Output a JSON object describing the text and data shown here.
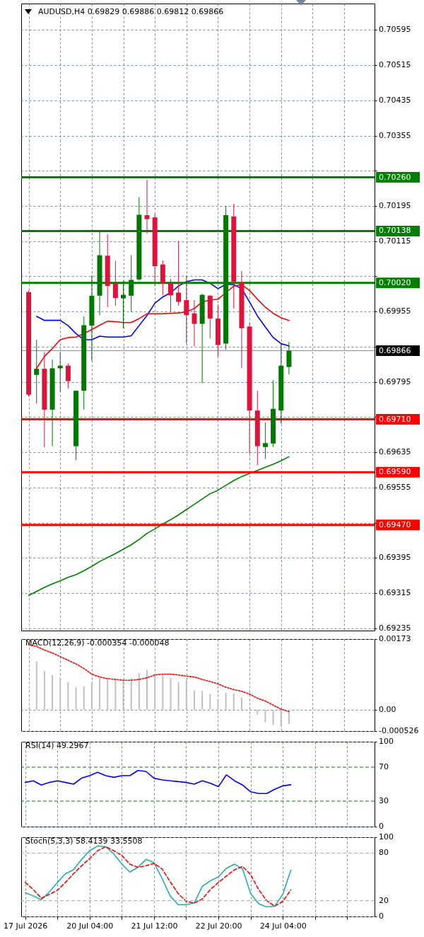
{
  "chart_data": [
    {
      "type": "candlestick",
      "title": "AUDUSD,H4 0.69829 0.69886 0.69812 0.69866",
      "categories": [
        null,
        null,
        null,
        null,
        null,
        null,
        null,
        null,
        null,
        null,
        null,
        null,
        null,
        null,
        null,
        null,
        null,
        null,
        null,
        null,
        null,
        null,
        null,
        null,
        null,
        null,
        null,
        null,
        null,
        null,
        null,
        null,
        null,
        null
      ],
      "ohlc": [
        [
          0.69999,
          0.70003,
          0.69762,
          0.69766
        ],
        [
          0.69811,
          0.69891,
          0.69746,
          0.69825
        ],
        [
          0.69825,
          0.69863,
          0.69646,
          0.69732
        ],
        [
          0.69732,
          0.69846,
          0.69649,
          0.69826
        ],
        [
          0.69826,
          0.69863,
          0.69772,
          0.69832
        ],
        [
          0.69832,
          0.69837,
          0.6978,
          0.69797
        ],
        [
          0.69649,
          0.69776,
          0.69617,
          0.69775
        ],
        [
          0.69775,
          0.69944,
          0.69732,
          0.69924
        ],
        [
          0.69923,
          0.70037,
          0.69843,
          0.69991
        ],
        [
          0.69991,
          0.70136,
          0.69947,
          0.70083
        ],
        [
          0.70082,
          0.70131,
          0.69965,
          0.70013
        ],
        [
          0.70019,
          0.7007,
          0.69968,
          0.69986
        ],
        [
          0.69985,
          0.70025,
          0.69917,
          0.69993
        ],
        [
          0.69991,
          0.70083,
          0.69954,
          0.70027
        ],
        [
          0.70028,
          0.70215,
          0.70025,
          0.70175
        ],
        [
          0.70174,
          0.70255,
          0.70132,
          0.70165
        ],
        [
          0.70169,
          0.70177,
          0.70013,
          0.70058
        ],
        [
          0.70062,
          0.70071,
          0.69992,
          0.70019
        ],
        [
          0.7002,
          0.70029,
          0.69953,
          0.69992
        ],
        [
          0.69998,
          0.70115,
          0.69968,
          0.69977
        ],
        [
          0.69981,
          0.70037,
          0.69882,
          0.69947
        ],
        [
          0.69951,
          0.69981,
          0.69876,
          0.69927
        ],
        [
          0.69927,
          0.69995,
          0.69792,
          0.69993
        ],
        [
          0.69991,
          0.69993,
          0.69894,
          0.69939
        ],
        [
          0.69939,
          0.69971,
          0.69853,
          0.69879
        ],
        [
          0.69882,
          0.70195,
          0.69868,
          0.70174
        ],
        [
          0.70171,
          0.702,
          0.69962,
          0.70023
        ],
        [
          0.70022,
          0.70047,
          0.69826,
          0.69917
        ],
        [
          0.69921,
          0.69929,
          0.69632,
          0.6973
        ],
        [
          0.6973,
          0.69775,
          0.69606,
          0.69649
        ],
        [
          0.69647,
          0.69703,
          0.6962,
          0.69656
        ],
        [
          0.69655,
          0.69799,
          0.69647,
          0.69734
        ],
        [
          0.6973,
          0.69882,
          0.697,
          0.69832
        ],
        [
          0.69829,
          0.69886,
          0.69812,
          0.69866
        ]
      ],
      "colors": [
        "#dc143c",
        "#007800",
        "#dc143c",
        "#007800",
        "#007800",
        "#dc143c",
        "#007800",
        "#007800",
        "#007800",
        "#007800",
        "#dc143c",
        "#dc143c",
        "#007800",
        "#007800",
        "#007800",
        "#dc143c",
        "#dc143c",
        "#dc143c",
        "#dc143c",
        "#dc143c",
        "#dc143c",
        "#dc143c",
        "#007800",
        "#dc143c",
        "#dc143c",
        "#007800",
        "#dc143c",
        "#dc143c",
        "#dc143c",
        "#dc143c",
        "#007800",
        "#007800",
        "#007800",
        "#007800"
      ],
      "series": [
        {
          "type": "line",
          "color": "#0000ff",
          "values": [
            null,
            0.69944,
            0.69935,
            0.69935,
            0.69935,
            0.69923,
            0.69905,
            0.69891,
            0.69891,
            0.69899,
            0.69897,
            0.69897,
            0.69897,
            0.699,
            0.69923,
            0.69946,
            0.69974,
            0.69988,
            0.69998,
            0.70013,
            0.70023,
            0.70027,
            0.70027,
            0.70019,
            0.70007,
            0.70017,
            0.70016,
            0.70007,
            0.69977,
            0.69945,
            0.6992,
            0.69896,
            0.69882,
            0.69877
          ]
        },
        {
          "type": "line",
          "color": "#ff0000",
          "values": [
            null,
            0.69826,
            0.69853,
            0.69871,
            0.69891,
            0.69896,
            0.69897,
            0.69905,
            0.69914,
            0.69924,
            0.69933,
            0.69932,
            0.6993,
            0.6993,
            0.69939,
            0.6995,
            0.6995,
            0.6995,
            0.69951,
            0.69952,
            0.69954,
            0.69962,
            0.69977,
            0.69981,
            0.69983,
            0.69998,
            0.70013,
            0.70016,
            0.70003,
            0.69983,
            0.69965,
            0.69951,
            0.69941,
            0.69935
          ]
        },
        {
          "type": "line",
          "color": "#008000",
          "values": [
            0.6931,
            0.69319,
            0.69328,
            0.69336,
            0.69343,
            0.69351,
            0.69357,
            0.69366,
            0.69376,
            0.69387,
            0.69396,
            0.69405,
            0.69415,
            0.69425,
            0.69437,
            0.69451,
            0.69461,
            0.69472,
            0.69482,
            0.69493,
            0.69505,
            0.69517,
            0.69529,
            0.69541,
            0.69549,
            0.6956,
            0.69571,
            0.6958,
            0.69587,
            0.69594,
            0.69601,
            0.69608,
            0.69616,
            0.69625
          ]
        }
      ],
      "ylim": [
        0.6923,
        0.70655
      ],
      "yticks": [
        0.70595,
        0.70515,
        0.70435,
        0.70355,
        {
          "value": 0.70275,
          "label": null
        },
        0.70195,
        0.70115,
        {
          "value": 0.70035,
          "label": null
        },
        0.69955,
        {
          "value": 0.69875,
          "label": null
        },
        0.69795,
        {
          "value": 0.69715,
          "label": null
        },
        0.69635,
        0.69555,
        {
          "value": 0.69475,
          "label": null
        },
        0.69395,
        0.69315,
        0.69235
      ],
      "ref_lines": [
        {
          "axis": "y",
          "value": 0.7026,
          "label": "0.70260",
          "color": "#008000"
        },
        {
          "axis": "y",
          "value": 0.70138,
          "label": "0.70138",
          "color": "#008000"
        },
        {
          "axis": "y",
          "value": 0.7002,
          "label": "0.70020",
          "color": "#008000"
        },
        {
          "axis": "y",
          "value": 0.69866,
          "label": "0.69866",
          "color": "#000000",
          "line_style": "solid"
        },
        {
          "axis": "y",
          "value": 0.6971,
          "label": "0.69710",
          "color": "#ff0000"
        },
        {
          "axis": "y",
          "value": 0.6959,
          "label": "0.69590",
          "color": "#ff0000"
        },
        {
          "axis": "y",
          "value": 0.6947,
          "label": "0.69470",
          "color": "#ff0000"
        }
      ],
      "grid": true,
      "tick_labels": "y"
    },
    {
      "type": "bar",
      "title": "MACD(12,26,9) -0.000354 -0.000048",
      "categories": [
        null,
        null,
        null,
        null,
        null,
        null,
        null,
        null,
        null,
        null,
        null,
        null,
        null,
        null,
        null,
        null,
        null,
        null,
        null,
        null,
        null,
        null,
        null,
        null,
        null,
        null,
        null,
        null,
        null,
        null,
        null,
        null,
        null,
        null
      ],
      "series": [
        {
          "type": "bar",
          "color": "#c0c0c0",
          "values": [
            null,
            0.00118,
            0.00095,
            0.00085,
            0.00078,
            0.00068,
            0.00055,
            0.00057,
            0.00066,
            0.00077,
            0.00077,
            0.00076,
            0.00072,
            0.00077,
            0.0009,
            0.00097,
            0.00088,
            0.00085,
            0.00078,
            0.00068,
            0.00072,
            0.00047,
            0.00046,
            0.00038,
            0.00026,
            0.00041,
            0.0004,
            0.0003,
            null,
            -0.00012,
            -0.00031,
            -0.00038,
            -0.00042,
            -0.000354
          ]
        },
        {
          "type": "line",
          "color": "#ff0000",
          "line_style": "dotted",
          "values": [
            0.00159,
            0.00155,
            0.00146,
            0.00139,
            0.0013,
            0.00121,
            0.00112,
            0.00101,
            0.00087,
            0.0008,
            0.00076,
            0.00074,
            0.00072,
            0.00072,
            0.00074,
            0.00078,
            0.00085,
            0.00087,
            0.00087,
            0.00085,
            0.00082,
            0.0008,
            0.00074,
            0.00069,
            0.00063,
            0.00055,
            0.00049,
            0.00045,
            0.00038,
            0.00028,
            0.00021,
            0.00011,
            1e-05,
            -4.8e-05
          ]
        }
      ],
      "ylim": [
        -0.000526,
        0.00173
      ],
      "yticks": [
        0.00173,
        {
          "value": 0,
          "label": "0.00"
        },
        -0.000526
      ],
      "grid": true,
      "tick_labels": "y"
    },
    {
      "type": "line",
      "title": "RSI(14) 49.2967",
      "categories": [
        null,
        null,
        null,
        null,
        null,
        null,
        null,
        null,
        null,
        null,
        null,
        null,
        null,
        null,
        null,
        null,
        null,
        null,
        null,
        null,
        null,
        null,
        null,
        null,
        null,
        null,
        null,
        null,
        null,
        null,
        null,
        null,
        null,
        null
      ],
      "series": [
        {
          "color": "#0000ff",
          "values": [
            52,
            54,
            49,
            52,
            54,
            52,
            50,
            57,
            60,
            64,
            60,
            58,
            60,
            60,
            66,
            65,
            57,
            55,
            54,
            53,
            52,
            50,
            54,
            51,
            47,
            61,
            54,
            49,
            41,
            39,
            39,
            44,
            48,
            49.2967
          ]
        }
      ],
      "ylim": [
        0,
        100
      ],
      "yticks": [
        100,
        70,
        30,
        0
      ],
      "ref_lines": [
        {
          "axis": "y",
          "value": 70,
          "color": "#008000",
          "line_style": "dashed"
        },
        {
          "axis": "y",
          "value": 30,
          "color": "#008000",
          "line_style": "dashed"
        }
      ],
      "grid": true,
      "tick_labels": "y"
    },
    {
      "type": "line",
      "title": "Stoch(5,3,3) 58.4139 33.5508",
      "categories": [
        "17 Jul 2026",
        null,
        null,
        null,
        null,
        null,
        null,
        null,
        "20 Jul 04:00",
        null,
        null,
        null,
        null,
        null,
        null,
        null,
        "21 Jul 12:00",
        null,
        null,
        null,
        null,
        null,
        null,
        null,
        "22 Jul 20:00",
        null,
        null,
        null,
        null,
        null,
        null,
        null,
        "24 Jul 04:00",
        null
      ],
      "series": [
        {
          "color": "#20b2aa",
          "values": [
            30,
            26,
            21,
            31,
            43,
            54,
            59,
            72,
            83,
            89,
            88,
            79,
            66,
            56,
            62,
            72,
            68,
            48,
            26,
            15,
            15,
            17,
            38,
            45,
            50,
            61,
            66,
            60,
            29,
            16,
            12,
            13,
            28,
            58.4139
          ]
        },
        {
          "color": "#ff0000",
          "line_style": "dashed",
          "values": [
            43,
            34,
            23,
            28,
            33,
            43,
            54,
            64,
            73,
            83,
            88,
            83,
            77,
            66,
            62,
            64,
            67,
            60,
            44,
            29,
            19,
            17,
            22,
            34,
            43,
            51,
            59,
            63,
            53,
            34,
            20,
            13,
            19,
            33.5508
          ]
        }
      ],
      "ylim": [
        0,
        100
      ],
      "yticks": [
        100,
        80,
        20,
        0
      ],
      "ref_lines": [
        {
          "axis": "y",
          "value": 80,
          "color": "#a9a9a9",
          "line_style": "dashed"
        },
        {
          "axis": "y",
          "value": 20,
          "color": "#a9a9a9",
          "line_style": "dashed"
        }
      ],
      "grid": true
    }
  ]
}
